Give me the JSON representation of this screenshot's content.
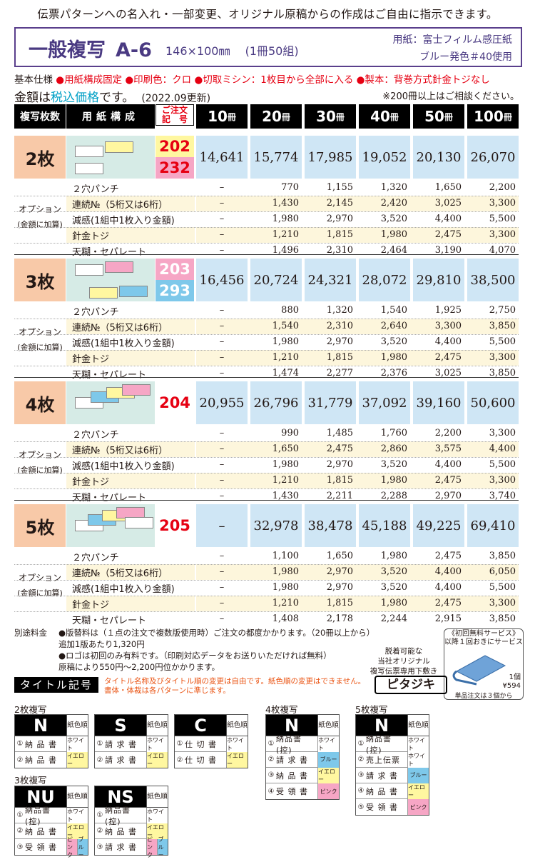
{
  "header": {
    "top_line": "伝票パターンへの名入れ・一部変更、オリジナル原稿からの作成はご自由に指示できます。",
    "title": "一般複写",
    "model": "A-6",
    "size": "146×100㎜　 (1冊50組)",
    "paper_line1": "用紙：富士フィルム感圧紙",
    "paper_line2": "ブルー発色＃40使用"
  },
  "spec": {
    "label": "基本仕様",
    "items": [
      "●用紙構成固定",
      "●印刷色：クロ",
      "●切取ミシン：1枚目から全部に入る",
      "●製本：背巻方式針金トジなし"
    ]
  },
  "price_heading": {
    "prefix": "金額は",
    "accent": "税込価格",
    "suffix": "です。",
    "date": "(2022.09更新)",
    "note": "※200冊以上はご相談ください。"
  },
  "table_header": {
    "copies": "複写枚数",
    "composition": "用紙構成",
    "code_line1": "ご注文",
    "code_line2": "記　号",
    "quantities": [
      "10",
      "20",
      "30",
      "40",
      "50",
      "100"
    ],
    "unit": "冊"
  },
  "option_label": {
    "line1": "オプション",
    "line2": "(金額に加算)"
  },
  "sections": [
    {
      "label": "2枚",
      "codes": [
        "202",
        "232"
      ],
      "code_colors": [
        "#fff7a0",
        "#f6a6c5"
      ],
      "prices": [
        "14,641",
        "15,774",
        "17,985",
        "19,052",
        "20,130",
        "26,070"
      ],
      "options": [
        {
          "name": "２穴パンチ",
          "values": [
            "–",
            "770",
            "1,155",
            "1,320",
            "1,650",
            "2,200"
          ]
        },
        {
          "name": "連続№（5桁又は6桁）",
          "values": [
            "–",
            "1,430",
            "2,145",
            "2,420",
            "3,025",
            "3,300"
          ]
        },
        {
          "name": "減感(1組中1枚入り金額)",
          "values": [
            "–",
            "1,980",
            "2,970",
            "3,520",
            "4,400",
            "5,500"
          ]
        },
        {
          "name": "針金トジ",
          "values": [
            "–",
            "1,210",
            "1,815",
            "1,980",
            "2,475",
            "3,300"
          ]
        },
        {
          "name": "天糊・セパレート",
          "values": [
            "–",
            "1,496",
            "2,310",
            "2,464",
            "3,190",
            "4,070"
          ]
        }
      ]
    },
    {
      "label": "3枚",
      "codes": [
        "203",
        "293"
      ],
      "code_colors": [
        "#f6a6c5",
        "#7ec8ea"
      ],
      "prices": [
        "16,456",
        "20,724",
        "24,321",
        "28,072",
        "29,810",
        "38,500"
      ],
      "options": [
        {
          "name": "２穴パンチ",
          "values": [
            "–",
            "880",
            "1,320",
            "1,540",
            "1,925",
            "2,750"
          ]
        },
        {
          "name": "連続№（5桁又は6桁）",
          "values": [
            "–",
            "1,540",
            "2,310",
            "2,640",
            "3,300",
            "3,850"
          ]
        },
        {
          "name": "減感(1組中1枚入り金額)",
          "values": [
            "–",
            "1,980",
            "2,970",
            "3,520",
            "4,400",
            "5,500"
          ]
        },
        {
          "name": "針金トジ",
          "values": [
            "–",
            "1,210",
            "1,815",
            "1,980",
            "2,475",
            "3,300"
          ]
        },
        {
          "name": "天糊・セパレート",
          "values": [
            "–",
            "1,474",
            "2,277",
            "2,376",
            "3,025",
            "3,850"
          ]
        }
      ]
    },
    {
      "label": "4枚",
      "codes": [
        "204"
      ],
      "code_colors": [
        "#ffffff"
      ],
      "prices": [
        "20,955",
        "26,796",
        "31,779",
        "37,092",
        "39,160",
        "50,600"
      ],
      "options": [
        {
          "name": "２穴パンチ",
          "values": [
            "–",
            "990",
            "1,485",
            "1,760",
            "2,200",
            "3,300"
          ]
        },
        {
          "name": "連続№（5桁又は6桁）",
          "values": [
            "–",
            "1,650",
            "2,475",
            "2,860",
            "3,575",
            "4,400"
          ]
        },
        {
          "name": "減感(1組中1枚入り金額)",
          "values": [
            "–",
            "1,980",
            "2,970",
            "3,520",
            "4,400",
            "5,500"
          ]
        },
        {
          "name": "針金トジ",
          "values": [
            "–",
            "1,210",
            "1,815",
            "1,980",
            "2,475",
            "3,300"
          ]
        },
        {
          "name": "天糊・セパレート",
          "values": [
            "–",
            "1,430",
            "2,211",
            "2,288",
            "2,970",
            "3,740"
          ]
        }
      ]
    },
    {
      "label": "5枚",
      "codes": [
        "205"
      ],
      "code_colors": [
        "#ffffff"
      ],
      "prices": [
        "–",
        "32,978",
        "38,478",
        "45,188",
        "49,225",
        "69,410"
      ],
      "options": [
        {
          "name": "２穴パンチ",
          "values": [
            "–",
            "1,100",
            "1,650",
            "1,980",
            "2,475",
            "3,850"
          ]
        },
        {
          "name": "連続№（5桁又は6桁）",
          "values": [
            "–",
            "1,980",
            "2,970",
            "3,520",
            "4,400",
            "6,050"
          ]
        },
        {
          "name": "減感(1組中1枚入り金額)",
          "values": [
            "–",
            "1,980",
            "2,970",
            "3,520",
            "4,400",
            "5,500"
          ]
        },
        {
          "name": "針金トジ",
          "values": [
            "–",
            "1,210",
            "1,815",
            "1,980",
            "2,475",
            "3,300"
          ]
        },
        {
          "name": "天糊・セパレート",
          "values": [
            "–",
            "1,408",
            "2,178",
            "2,244",
            "2,915",
            "3,850"
          ]
        }
      ]
    }
  ],
  "extra_fee": {
    "label": "別途料金",
    "line1": "●版替料は（１点の注文で複数版使用時）ご注文の都度かかります。（20冊以上から）",
    "line2": "追加1版あたり1,320円",
    "line3": "●ロゴは初回のみ有料です。（印刷対応データをお送りいただければ無料）",
    "line4": "原稿により550円〜2,200円位かかります。"
  },
  "pitajiki": {
    "service": "《初回無料サービス》",
    "service2": "以降１回おきにサービス",
    "desc1": "脱着可能な",
    "desc2": "当社オリジナル",
    "desc3": "複写伝票専用下敷き",
    "name": "ピタジキ",
    "qty": "1個",
    "price": "¥594",
    "unit_note": "単品注文は３個から"
  },
  "title_codes": {
    "heading": "タイトル記号",
    "note1": "タイトル名称及びタイトル順の変更は自由です。紙色順の変更はできません。",
    "note2": "書体・体裁は各パターンに準じます。",
    "order_label": "紙色順",
    "groups": [
      {
        "label": "2枚複写",
        "cards": [
          {
            "letter": "N",
            "rows": [
              {
                "num": "①",
                "name": "納 品 書",
                "color": "ホワイト"
              },
              {
                "num": "②",
                "name": "納 品 書",
                "color": "イエロー"
              }
            ]
          },
          {
            "letter": "S",
            "rows": [
              {
                "num": "①",
                "name": "請 求 書",
                "color": "ホワイト"
              },
              {
                "num": "②",
                "name": "請 求 書",
                "color": "イエロー"
              }
            ]
          },
          {
            "letter": "C",
            "rows": [
              {
                "num": "①",
                "name": "仕 切 書",
                "color": "ホワイト"
              },
              {
                "num": "②",
                "name": "仕 切 書",
                "color": "イエロー"
              }
            ]
          }
        ]
      },
      {
        "label": "3枚複写",
        "cards": [
          {
            "letter": "NU",
            "rows": [
              {
                "num": "①",
                "name": "納品書(控)",
                "color": "ホワイト"
              },
              {
                "num": "②",
                "name": "納 品 書",
                "color": "イエロー"
              },
              {
                "num": "③",
                "name": "受 領 書",
                "color": "ピンク",
                "color2": "ブルー"
              }
            ]
          },
          {
            "letter": "NS",
            "rows": [
              {
                "num": "①",
                "name": "納品書(控)",
                "color": "ホワイト"
              },
              {
                "num": "②",
                "name": "納 品 書",
                "color": "イエロー"
              },
              {
                "num": "③",
                "name": "請 求 書",
                "color": "ピンク",
                "color2": "ブルー"
              }
            ]
          }
        ]
      },
      {
        "label": "4枚複写",
        "cards": [
          {
            "letter": "N",
            "rows": [
              {
                "num": "①",
                "name": "納品書(控)",
                "color": "ホワイト"
              },
              {
                "num": "②",
                "name": "請 求 書",
                "color": "ブルー"
              },
              {
                "num": "③",
                "name": "納 品 書",
                "color": "イエロー"
              },
              {
                "num": "④",
                "name": "受 領 書",
                "color": "ピンク"
              }
            ]
          }
        ]
      },
      {
        "label": "5枚複写",
        "cards": [
          {
            "letter": "N",
            "rows": [
              {
                "num": "①",
                "name": "納品書(控)",
                "color": "ホワイト"
              },
              {
                "num": "②",
                "name": "売上伝票",
                "color": "ホワイト"
              },
              {
                "num": "③",
                "name": "請 求 書",
                "color": "ブルー"
              },
              {
                "num": "④",
                "name": "納 品 書",
                "color": "イエロー"
              },
              {
                "num": "⑤",
                "name": "受 領 書",
                "color": "ピンク"
              }
            ]
          }
        ]
      }
    ]
  }
}
